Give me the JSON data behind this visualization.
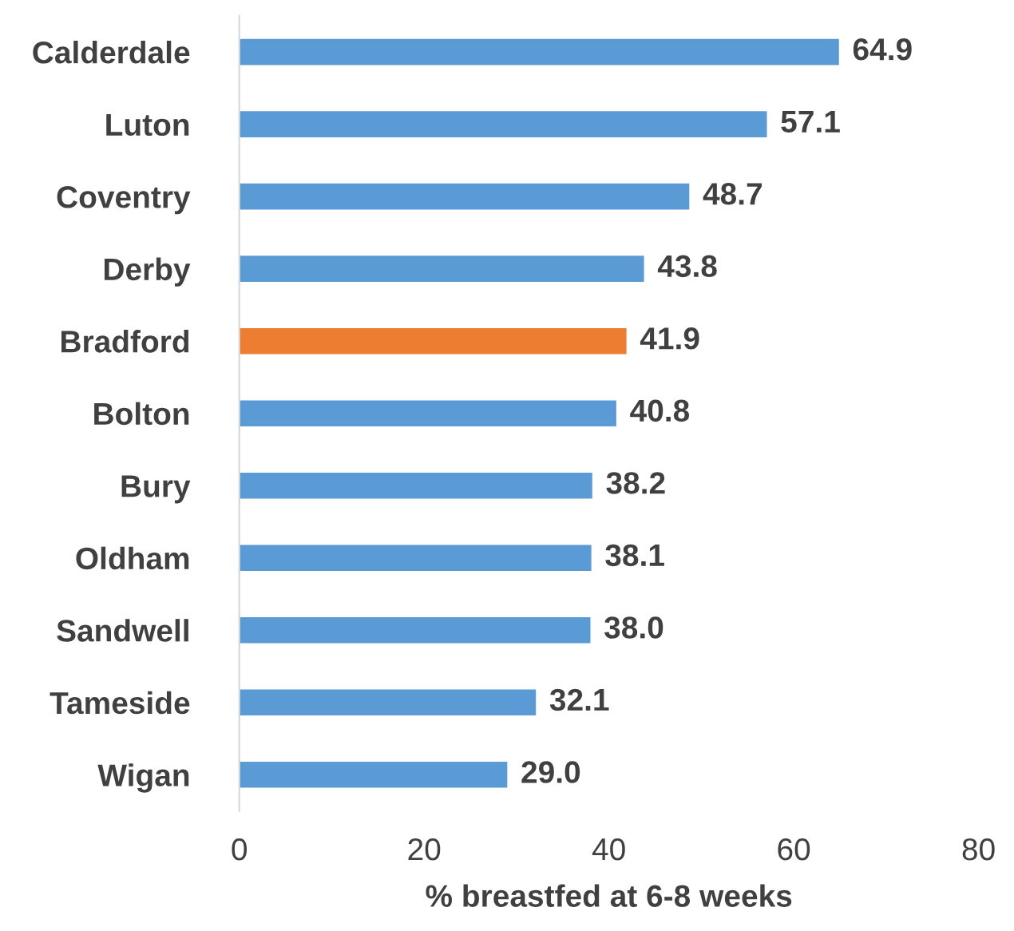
{
  "chart_data": {
    "type": "bar",
    "orientation": "horizontal",
    "xlabel": "% breastfed at 6-8 weeks",
    "categories": [
      "Calderdale",
      "Luton",
      "Coventry",
      "Derby",
      "Bradford",
      "Bolton",
      "Bury",
      "Oldham",
      "Sandwell",
      "Tameside",
      "Wigan"
    ],
    "values": [
      64.9,
      57.1,
      48.7,
      43.8,
      41.9,
      40.8,
      38.2,
      38.1,
      38.0,
      32.1,
      29.0
    ],
    "colors": [
      "#5b9bd5",
      "#5b9bd5",
      "#5b9bd5",
      "#5b9bd5",
      "#ed7d31",
      "#5b9bd5",
      "#5b9bd5",
      "#5b9bd5",
      "#5b9bd5",
      "#5b9bd5",
      "#5b9bd5"
    ],
    "value_labels": [
      "64.9",
      "57.1",
      "48.7",
      "43.8",
      "41.9",
      "40.8",
      "38.2",
      "38.1",
      "38.0",
      "32.1",
      "29.0"
    ],
    "xlim": [
      0,
      80
    ],
    "xticks": [
      0,
      20,
      40,
      60,
      80
    ],
    "grid": false,
    "legend": false
  }
}
